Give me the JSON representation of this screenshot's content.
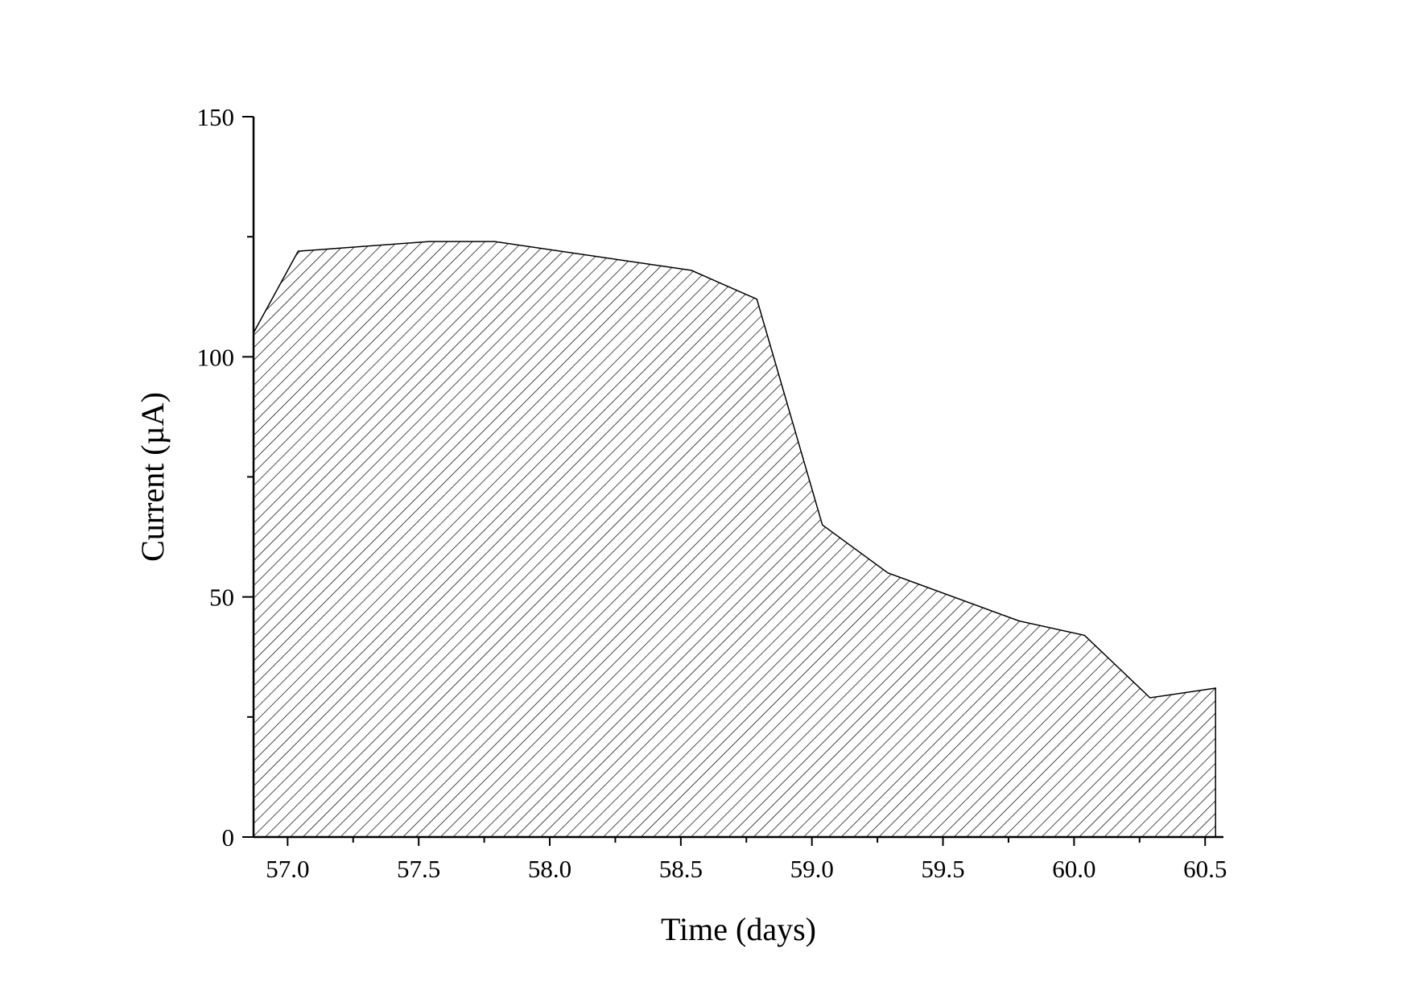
{
  "chart_data": {
    "type": "area",
    "title": "",
    "xlabel": "Time (days)",
    "ylabel": "Current (µA)",
    "xlim": [
      56.87,
      60.57
    ],
    "ylim": [
      0,
      150
    ],
    "x_ticks": [
      "57.0",
      "57.5",
      "58.0",
      "58.5",
      "59.0",
      "59.5",
      "60.0",
      "60.5"
    ],
    "y_ticks": [
      "0",
      "50",
      "100",
      "150"
    ],
    "grid": false,
    "legend": "none",
    "fill_pattern": "diagonal-hatch",
    "colors": {
      "line": "#000000",
      "hatch": "#000000",
      "background": "#ffffff"
    },
    "series": [
      {
        "x": [
          56.87,
          57.04,
          57.54,
          57.79,
          58.54,
          58.79,
          59.04,
          59.29,
          59.79,
          60.04,
          60.29,
          60.54
        ],
        "y": [
          105,
          122,
          124,
          124,
          118,
          112,
          65,
          55,
          45,
          42,
          29,
          31
        ]
      }
    ]
  }
}
